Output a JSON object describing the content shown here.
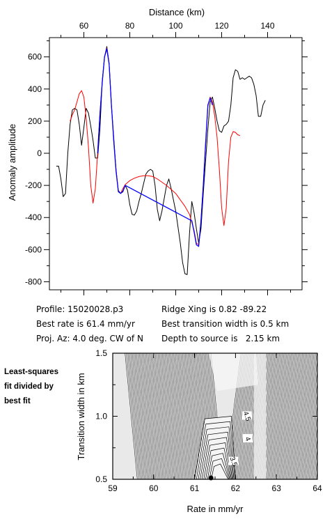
{
  "chart_data": [
    {
      "type": "line",
      "title": "",
      "xlabel": "Distance (km)",
      "ylabel": "Anomaly amplitude",
      "xlim": [
        45,
        155
      ],
      "ylim": [
        -850,
        720
      ],
      "x_ticks": [
        60,
        80,
        100,
        120,
        140
      ],
      "y_ticks": [
        600,
        400,
        200,
        0,
        -200,
        -400,
        -600,
        -800
      ],
      "x_tick_labels": [
        "60",
        "80",
        "100",
        "120",
        "140"
      ],
      "y_tick_labels": [
        "600",
        "400",
        "200",
        "0",
        "-200",
        "-400",
        "-600",
        "-800"
      ],
      "grid": false,
      "series": [
        {
          "color": "#000000",
          "points": [
            [
              48,
              -80
            ],
            [
              49,
              -80
            ],
            [
              50,
              -160
            ],
            [
              51,
              -270
            ],
            [
              52,
              -250
            ],
            [
              53,
              0
            ],
            [
              54,
              180
            ],
            [
              55,
              270
            ],
            [
              56,
              280
            ],
            [
              57,
              270
            ],
            [
              58,
              180
            ],
            [
              59,
              50
            ],
            [
              60,
              160
            ],
            [
              61,
              280
            ],
            [
              62,
              250
            ],
            [
              63,
              170
            ],
            [
              64,
              80
            ],
            [
              65,
              -30
            ],
            [
              66,
              -30
            ],
            [
              67,
              150
            ],
            [
              68,
              450
            ],
            [
              69,
              600
            ],
            [
              70,
              665
            ],
            [
              71,
              560
            ],
            [
              72,
              300
            ],
            [
              73,
              100
            ],
            [
              74,
              -100
            ],
            [
              75,
              -240
            ],
            [
              76,
              -250
            ],
            [
              77,
              -240
            ],
            [
              78,
              -200
            ],
            [
              79,
              -230
            ],
            [
              80,
              -320
            ],
            [
              81,
              -380
            ],
            [
              82,
              -385
            ],
            [
              83,
              -360
            ],
            [
              84,
              -300
            ],
            [
              85,
              -250
            ],
            [
              86,
              -190
            ],
            [
              87,
              -130
            ],
            [
              88,
              -110
            ],
            [
              89,
              -100
            ],
            [
              90,
              -110
            ],
            [
              91,
              -200
            ],
            [
              92,
              -350
            ],
            [
              93,
              -420
            ],
            [
              94,
              -360
            ],
            [
              95,
              -280
            ],
            [
              96,
              -200
            ],
            [
              97,
              -160
            ],
            [
              98,
              -220
            ],
            [
              99,
              -290
            ],
            [
              100,
              -360
            ],
            [
              101,
              -460
            ],
            [
              102,
              -560
            ],
            [
              103,
              -680
            ],
            [
              104,
              -750
            ],
            [
              105,
              -755
            ],
            [
              106,
              -500
            ],
            [
              107,
              -300
            ],
            [
              108,
              -370
            ],
            [
              109,
              -470
            ],
            [
              110,
              -560
            ],
            [
              111,
              -470
            ],
            [
              112,
              -250
            ],
            [
              113,
              -50
            ],
            [
              114,
              150
            ],
            [
              115,
              320
            ],
            [
              116,
              350
            ],
            [
              117,
              280
            ],
            [
              118,
              200
            ],
            [
              119,
              140
            ],
            [
              120,
              130
            ],
            [
              121,
              170
            ],
            [
              122,
              180
            ],
            [
              123,
              200
            ],
            [
              124,
              300
            ],
            [
              125,
              470
            ],
            [
              126,
              520
            ],
            [
              127,
              510
            ],
            [
              128,
              460
            ],
            [
              129,
              470
            ],
            [
              130,
              460
            ],
            [
              131,
              470
            ],
            [
              132,
              480
            ],
            [
              133,
              470
            ],
            [
              134,
              430
            ],
            [
              135,
              360
            ],
            [
              136,
              230
            ],
            [
              137,
              230
            ],
            [
              138,
              300
            ],
            [
              139,
              330
            ]
          ]
        },
        {
          "color": "#ff0000",
          "points": [
            [
              54,
              200
            ],
            [
              55,
              240
            ],
            [
              56,
              270
            ],
            [
              57,
              320
            ],
            [
              58,
              370
            ],
            [
              59,
              390
            ],
            [
              60,
              350
            ],
            [
              61,
              220
            ],
            [
              62,
              40
            ],
            [
              63,
              -200
            ],
            [
              64,
              -310
            ],
            [
              65,
              -220
            ],
            [
              66,
              0
            ],
            [
              67,
              250
            ],
            [
              68,
              440
            ],
            [
              69,
              600
            ],
            [
              70,
              655
            ],
            [
              71,
              560
            ],
            [
              72,
              300
            ],
            [
              73,
              80
            ],
            [
              74,
              -100
            ],
            [
              75,
              -230
            ],
            [
              76,
              -250
            ],
            [
              77,
              -220
            ],
            [
              78,
              -195
            ],
            [
              80,
              -170
            ],
            [
              82,
              -155
            ],
            [
              84,
              -145
            ],
            [
              86,
              -140
            ],
            [
              88,
              -140
            ],
            [
              90,
              -145
            ],
            [
              92,
              -160
            ],
            [
              94,
              -180
            ],
            [
              96,
              -200
            ],
            [
              98,
              -225
            ],
            [
              100,
              -250
            ],
            [
              102,
              -290
            ],
            [
              104,
              -330
            ],
            [
              106,
              -380
            ],
            [
              107,
              -430
            ],
            [
              108,
              -480
            ],
            [
              109,
              -560
            ],
            [
              110,
              -570
            ],
            [
              111,
              -420
            ],
            [
              112,
              -200
            ],
            [
              113,
              50
            ],
            [
              114,
              290
            ],
            [
              115,
              350
            ],
            [
              116,
              320
            ],
            [
              117,
              230
            ],
            [
              118,
              100
            ],
            [
              119,
              -100
            ],
            [
              120,
              -340
            ],
            [
              121,
              -450
            ],
            [
              122,
              -340
            ],
            [
              123,
              -50
            ],
            [
              124,
              100
            ],
            [
              125,
              135
            ],
            [
              126,
              130
            ],
            [
              127,
              115
            ],
            [
              128,
              110
            ]
          ]
        },
        {
          "color": "#0000ff",
          "points": [
            [
              66,
              0
            ],
            [
              67,
              240
            ],
            [
              68,
              440
            ],
            [
              69,
              600
            ],
            [
              70,
              650
            ],
            [
              71,
              555
            ],
            [
              72,
              300
            ],
            [
              73,
              80
            ],
            [
              74,
              -110
            ],
            [
              75,
              -235
            ],
            [
              76,
              -250
            ],
            [
              77,
              -235
            ],
            [
              78,
              -200
            ],
            [
              107,
              -420
            ],
            [
              108,
              -490
            ],
            [
              109,
              -570
            ],
            [
              110,
              -580
            ],
            [
              111,
              -420
            ],
            [
              112,
              -200
            ],
            [
              113,
              60
            ],
            [
              114,
              300
            ],
            [
              115,
              345
            ],
            [
              116,
              300
            ]
          ]
        }
      ]
    },
    {
      "type": "heatmap",
      "title": "",
      "xlabel": "Rate in mm/yr",
      "ylabel": "Transition width in km",
      "xlim": [
        59,
        64
      ],
      "ylim": [
        0.5,
        1.5
      ],
      "x_ticks": [
        59,
        60,
        61,
        62,
        63,
        64
      ],
      "y_ticks": [
        0.5,
        1.0,
        1.5
      ],
      "x_tick_labels": [
        "59",
        "60",
        "61",
        "62",
        "63",
        "64"
      ],
      "y_tick_labels": [
        "0.5",
        "1.0",
        "1.5"
      ],
      "contour_labels": [
        {
          "x": 62.28,
          "y": 1.0,
          "text": "4.5"
        },
        {
          "x": 62.3,
          "y": 0.82,
          "text": "4"
        },
        {
          "x": 61.95,
          "y": 0.64,
          "text": "3.5"
        }
      ],
      "best_fit_point": [
        61.4,
        0.5
      ]
    }
  ],
  "info": {
    "profile": "Profile: 15020028.p3",
    "best_rate": "Best rate is 61.4 mm/yr",
    "proj_az": "Proj. Az: 4.0 deg. CW of N",
    "ridge_xing": "Ridge Xing is 0.82 -89.22",
    "best_transition": "Best transition width is 0.5 km",
    "depth": "Depth to source is   2.15 km"
  },
  "side_label": {
    "line1": "Least-squares",
    "line2": "fit divided by",
    "line3": "best fit"
  }
}
